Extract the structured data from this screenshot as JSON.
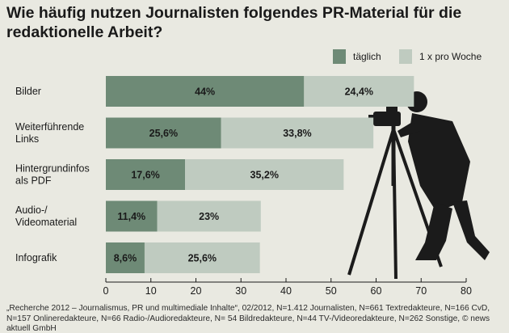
{
  "chart_data": {
    "type": "bar",
    "orientation": "horizontal",
    "stacked": true,
    "title": "Wie häufig nutzen Journalisten folgendes PR-Material für die redaktionelle Arbeit?",
    "categories": [
      [
        "Bilder"
      ],
      [
        "Weiterführende",
        "Links"
      ],
      [
        "Hintergrundinfos",
        "als PDF"
      ],
      [
        "Audio-/",
        "Videomaterial"
      ],
      [
        "Infografik"
      ]
    ],
    "series": [
      {
        "name": "täglich",
        "color": "#6e8a76",
        "values": [
          44,
          25.6,
          17.6,
          11.4,
          8.6
        ],
        "labels": [
          "44%",
          "25,6%",
          "17,6%",
          "11,4%",
          "8,6%"
        ]
      },
      {
        "name": "1 x pro Woche",
        "color": "#bfcbc0",
        "values": [
          24.4,
          33.8,
          35.2,
          23,
          25.6
        ],
        "labels": [
          "24,4%",
          "33,8%",
          "35,2%",
          "23%",
          "25,6%"
        ]
      }
    ],
    "xlim": [
      0,
      80
    ],
    "xticks": [
      0,
      10,
      20,
      30,
      40,
      50,
      60,
      70,
      80
    ],
    "legend_position": "top-right",
    "grid": false
  },
  "footer": "„Recherche 2012 – Journalismus, PR und multimediale Inhalte“, 02/2012, N=1.412 Journalisten, N=661 Textredakteure, N=166 CvD, N=157 Onlineredakteure, N=66 Radio-/Audioredakteure, N= 54 Bildredakteure, N=44 TV-/Videoredakteure, N=262 Sonstige, © news aktuell GmbH"
}
